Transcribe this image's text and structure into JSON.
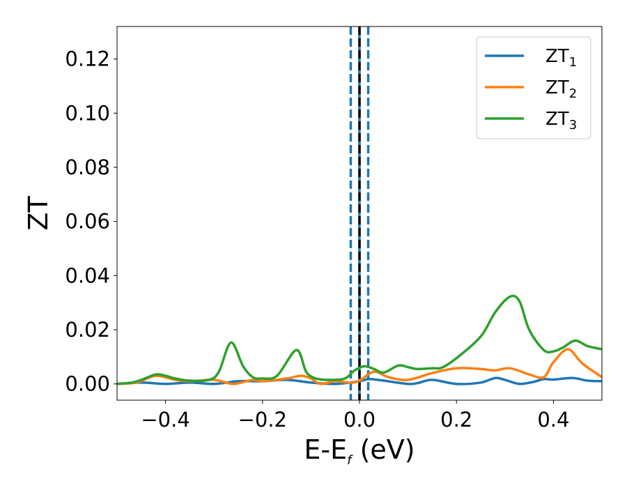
{
  "chart_data": {
    "type": "line",
    "title": "",
    "xlabel": {
      "main": "E-E",
      "sub": "f",
      "suffix": " (eV)"
    },
    "ylabel": "ZT",
    "xlim": [
      -0.5,
      0.5
    ],
    "ylim": [
      -0.006,
      0.132
    ],
    "xticks": [
      -0.4,
      -0.2,
      0.0,
      0.2,
      0.4
    ],
    "xtick_labels": [
      "−0.4",
      "−0.2",
      "0.0",
      "0.2",
      "0.4"
    ],
    "yticks": [
      0.0,
      0.02,
      0.04,
      0.06,
      0.08,
      0.1,
      0.12
    ],
    "ytick_labels": [
      "0.00",
      "0.02",
      "0.04",
      "0.06",
      "0.08",
      "0.10",
      "0.12"
    ],
    "grid": false,
    "legend_position": "top-right",
    "vertical_lines": [
      {
        "x": -0.018,
        "color": "#1f77b4",
        "style": "dashed"
      },
      {
        "x": 0.0,
        "color": "#1f77b4",
        "style": "solid"
      },
      {
        "x": 0.018,
        "color": "#1f77b4",
        "style": "dashed"
      },
      {
        "x": 0.0,
        "color": "#000000",
        "style": "dashed"
      }
    ],
    "series": [
      {
        "name": "ZT",
        "name_sub": "1",
        "color": "#1f77b4",
        "points": [
          [
            -0.5,
            0.0
          ],
          [
            -0.45,
            0.0005
          ],
          [
            -0.4,
            0.0
          ],
          [
            -0.35,
            0.0005
          ],
          [
            -0.3,
            0.0
          ],
          [
            -0.25,
            0.001
          ],
          [
            -0.2,
            0.001
          ],
          [
            -0.15,
            0.0015
          ],
          [
            -0.1,
            0.0005
          ],
          [
            -0.05,
            0.0
          ],
          [
            0.0,
            0.001
          ],
          [
            0.02,
            0.0018
          ],
          [
            0.05,
            0.0012
          ],
          [
            0.1,
            0.0
          ],
          [
            0.12,
            0.0003
          ],
          [
            0.15,
            0.0015
          ],
          [
            0.2,
            0.0
          ],
          [
            0.25,
            0.0005
          ],
          [
            0.28,
            0.0022
          ],
          [
            0.3,
            0.0015
          ],
          [
            0.33,
            0.0
          ],
          [
            0.36,
            0.0008
          ],
          [
            0.38,
            0.0018
          ],
          [
            0.4,
            0.0016
          ],
          [
            0.44,
            0.0022
          ],
          [
            0.47,
            0.0012
          ],
          [
            0.5,
            0.001
          ]
        ]
      },
      {
        "name": "ZT",
        "name_sub": "2",
        "color": "#ff7f0e",
        "points": [
          [
            -0.5,
            0.0
          ],
          [
            -0.46,
            0.0005
          ],
          [
            -0.42,
            0.003
          ],
          [
            -0.38,
            0.0015
          ],
          [
            -0.35,
            0.001
          ],
          [
            -0.3,
            0.0015
          ],
          [
            -0.26,
            0.0
          ],
          [
            -0.22,
            0.0015
          ],
          [
            -0.2,
            0.001
          ],
          [
            -0.15,
            0.002
          ],
          [
            -0.12,
            0.003
          ],
          [
            -0.1,
            0.002
          ],
          [
            -0.08,
            0.0
          ],
          [
            -0.05,
            0.001
          ],
          [
            -0.02,
            0.0005
          ],
          [
            0.0,
            0.0012
          ],
          [
            0.03,
            0.0045
          ],
          [
            0.06,
            0.0025
          ],
          [
            0.1,
            0.0015
          ],
          [
            0.15,
            0.004
          ],
          [
            0.2,
            0.0058
          ],
          [
            0.25,
            0.0055
          ],
          [
            0.28,
            0.005
          ],
          [
            0.31,
            0.0058
          ],
          [
            0.35,
            0.0035
          ],
          [
            0.38,
            0.0025
          ],
          [
            0.4,
            0.008
          ],
          [
            0.43,
            0.0128
          ],
          [
            0.46,
            0.0075
          ],
          [
            0.5,
            0.0025
          ]
        ]
      },
      {
        "name": "ZT",
        "name_sub": "3",
        "color": "#2ca02c",
        "points": [
          [
            -0.5,
            0.0
          ],
          [
            -0.47,
            0.0005
          ],
          [
            -0.45,
            0.0015
          ],
          [
            -0.42,
            0.0035
          ],
          [
            -0.4,
            0.003
          ],
          [
            -0.38,
            0.002
          ],
          [
            -0.35,
            0.0012
          ],
          [
            -0.31,
            0.0015
          ],
          [
            -0.29,
            0.0045
          ],
          [
            -0.265,
            0.0153
          ],
          [
            -0.24,
            0.0065
          ],
          [
            -0.22,
            0.0025
          ],
          [
            -0.2,
            0.002
          ],
          [
            -0.17,
            0.003
          ],
          [
            -0.13,
            0.0125
          ],
          [
            -0.11,
            0.0045
          ],
          [
            -0.09,
            0.002
          ],
          [
            -0.06,
            0.0015
          ],
          [
            -0.03,
            0.002
          ],
          [
            -0.01,
            0.005
          ],
          [
            0.01,
            0.0065
          ],
          [
            0.03,
            0.0055
          ],
          [
            0.05,
            0.0042
          ],
          [
            0.08,
            0.0068
          ],
          [
            0.1,
            0.0062
          ],
          [
            0.12,
            0.0055
          ],
          [
            0.15,
            0.0058
          ],
          [
            0.17,
            0.006
          ],
          [
            0.2,
            0.0095
          ],
          [
            0.25,
            0.0175
          ],
          [
            0.28,
            0.0265
          ],
          [
            0.31,
            0.0322
          ],
          [
            0.33,
            0.0305
          ],
          [
            0.35,
            0.02
          ],
          [
            0.38,
            0.0125
          ],
          [
            0.4,
            0.012
          ],
          [
            0.42,
            0.0135
          ],
          [
            0.445,
            0.016
          ],
          [
            0.47,
            0.014
          ],
          [
            0.5,
            0.0128
          ]
        ]
      }
    ]
  }
}
